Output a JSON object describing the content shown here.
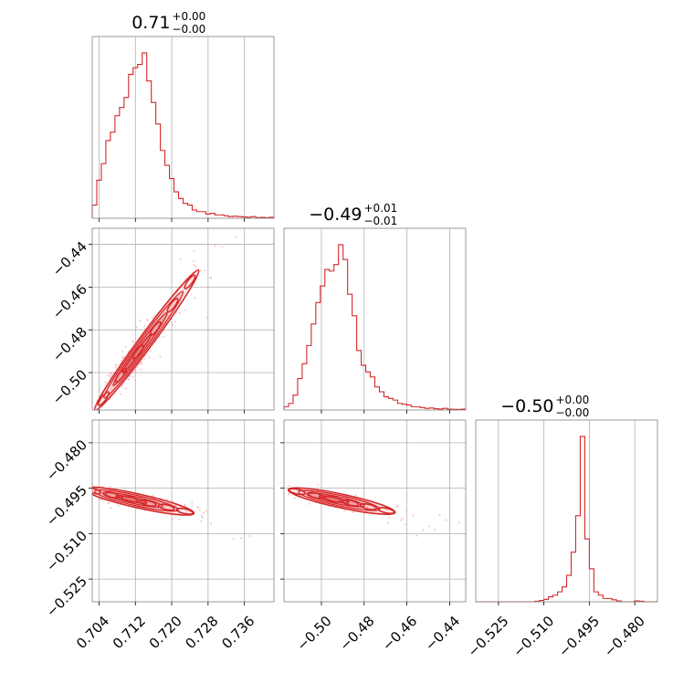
{
  "colors": {
    "line": "#d62728",
    "grid": "#b0b0b0",
    "frame": "#808080",
    "scatter": "#f4a3a8"
  },
  "chart_data": {
    "type": "corner",
    "params": [
      {
        "title": {
          "main": "0.71",
          "sup": "+0.00",
          "sub": "−0.00"
        },
        "range": [
          0.7025,
          0.7425
        ],
        "ticks": [
          0.704,
          0.712,
          0.72,
          0.728,
          0.736
        ],
        "tick_labels": [
          "0.704",
          "0.712",
          "0.720",
          "0.728",
          "0.736"
        ],
        "hist": [
          0.08,
          0.23,
          0.33,
          0.47,
          0.52,
          0.62,
          0.67,
          0.73,
          0.87,
          0.91,
          0.93,
          1.0,
          0.83,
          0.7,
          0.57,
          0.41,
          0.32,
          0.24,
          0.16,
          0.12,
          0.09,
          0.08,
          0.05,
          0.04,
          0.04,
          0.025,
          0.03,
          0.02,
          0.02,
          0.015,
          0.01,
          0.012,
          0.01,
          0.008,
          0.006,
          0.01,
          0.004,
          0.005,
          0.003,
          0.006
        ]
      },
      {
        "title": {
          "main": "−0.49",
          "sup": "+0.01",
          "sub": "−0.01"
        },
        "range": [
          -0.5175,
          -0.4325
        ],
        "ticks": [
          -0.5,
          -0.48,
          -0.46,
          -0.44
        ],
        "tick_labels": [
          "−0.50",
          "−0.48",
          "−0.46",
          "−0.44"
        ],
        "hist": [
          0.02,
          0.04,
          0.09,
          0.19,
          0.28,
          0.39,
          0.52,
          0.65,
          0.75,
          0.85,
          0.84,
          0.88,
          1.0,
          0.91,
          0.7,
          0.57,
          0.36,
          0.27,
          0.23,
          0.2,
          0.14,
          0.11,
          0.08,
          0.07,
          0.06,
          0.04,
          0.035,
          0.03,
          0.02,
          0.02,
          0.015,
          0.01,
          0.012,
          0.008,
          0.006,
          0.01,
          0.005,
          0.004,
          0.003,
          0.005
        ]
      },
      {
        "title": {
          "main": "−0.50",
          "sup": "+0.00",
          "sub": "−0.00"
        },
        "range": [
          -0.5325,
          -0.4725
        ],
        "ticks": [
          -0.525,
          -0.51,
          -0.495,
          -0.48
        ],
        "tick_labels": [
          "−0.525",
          "−0.510",
          "−0.495",
          "−0.480"
        ],
        "hist": [
          0.0,
          0.0,
          0.0,
          0.0,
          0.0,
          0.0,
          0.0,
          0.0,
          0.0,
          0.0,
          0.0,
          0.0,
          0.0,
          0.003,
          0.008,
          0.015,
          0.03,
          0.04,
          0.06,
          0.09,
          0.16,
          0.3,
          0.52,
          1.0,
          0.38,
          0.2,
          0.06,
          0.04,
          0.02,
          0.02,
          0.012,
          0.005,
          0.0,
          0.0,
          0.0,
          0.005,
          0.003,
          0.0,
          0.0,
          0.0
        ]
      }
    ],
    "pairs": [
      {
        "x": 0,
        "y": 1,
        "mean": [
          0.7115,
          -0.4935
        ],
        "direction": [
          0.004,
          0.0115
        ],
        "spread": 0.001,
        "contour_levels": [
          0.3,
          0.9,
          1.8,
          2.8
        ],
        "contours_extent_t": [
          -2.1,
          3.6
        ]
      },
      {
        "x": 0,
        "y": 2,
        "mean": [
          0.7105,
          -0.4985
        ],
        "direction": [
          0.0045,
          -0.0015
        ],
        "spread": 0.0007,
        "contour_levels": [
          0.3,
          0.9,
          1.8,
          2.8
        ],
        "contours_extent_t": [
          -2.2,
          3.2
        ]
      },
      {
        "x": 1,
        "y": 2,
        "mean": [
          -0.4955,
          -0.4985
        ],
        "direction": [
          0.01,
          -0.0015
        ],
        "spread": 0.0007,
        "contour_levels": [
          0.3,
          0.9,
          1.8,
          2.8
        ],
        "contours_extent_t": [
          -2.0,
          3.0
        ]
      }
    ],
    "grid": true
  }
}
